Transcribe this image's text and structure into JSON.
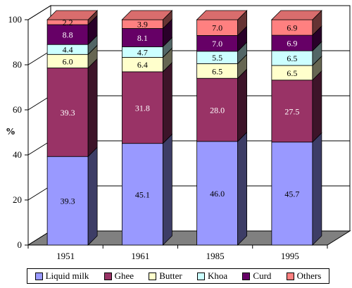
{
  "chart_data": {
    "type": "bar",
    "stacked": true,
    "three_d": true,
    "title": "",
    "xlabel": "",
    "ylabel": "%",
    "ylim": [
      0,
      100
    ],
    "yticks": [
      0,
      20,
      40,
      60,
      80,
      100
    ],
    "categories": [
      "1951",
      "1961",
      "1985",
      "1995"
    ],
    "legend_position": "bottom",
    "series": [
      {
        "name": "Liquid milk",
        "color": "#9999ff",
        "values": [
          39.3,
          45.1,
          46.0,
          45.7
        ],
        "labels": [
          "39.3",
          "45.1",
          "46.0",
          "45.7"
        ]
      },
      {
        "name": "Ghee",
        "color": "#993366",
        "values": [
          39.3,
          31.8,
          28.0,
          27.5
        ],
        "labels": [
          "39.3",
          "31.8",
          "28.0",
          "27.5"
        ]
      },
      {
        "name": "Butter",
        "color": "#ffffcc",
        "values": [
          6.0,
          6.4,
          6.5,
          6.5
        ],
        "labels": [
          "6.0",
          "6.4",
          "6.5",
          "6.5"
        ]
      },
      {
        "name": "Khoa",
        "color": "#ccffff",
        "values": [
          4.4,
          4.7,
          5.5,
          6.5
        ],
        "labels": [
          "4.4",
          "4.7",
          "5.5",
          "6.5"
        ]
      },
      {
        "name": "Curd",
        "color": "#660066",
        "values": [
          8.8,
          8.1,
          7.0,
          6.9
        ],
        "labels": [
          "8.8",
          "8.1",
          "7.0",
          "6.9"
        ]
      },
      {
        "name": "Others",
        "color": "#ff8080",
        "values": [
          2.2,
          3.9,
          7.0,
          6.9
        ],
        "labels": [
          "2.2",
          "3.9",
          "7.0",
          "6.9"
        ]
      }
    ]
  }
}
